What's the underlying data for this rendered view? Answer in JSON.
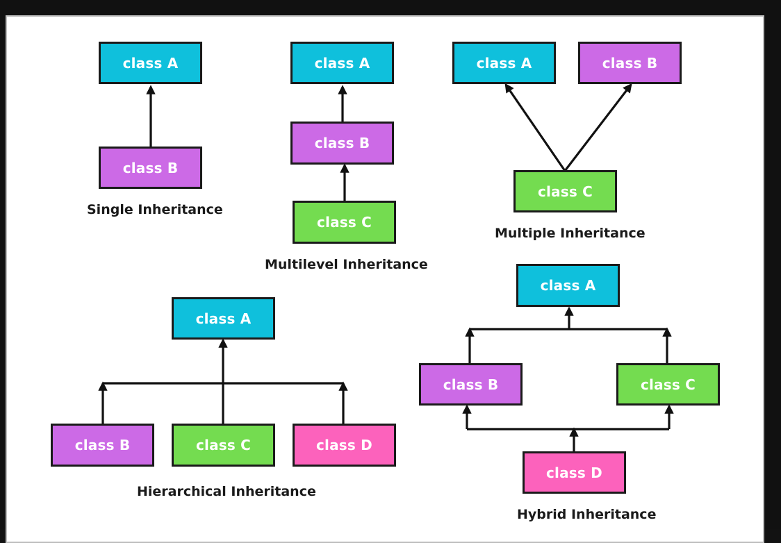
{
  "colors": {
    "cyan": "#0fc0dc",
    "purple": "#cc6ae6",
    "green": "#74dc50",
    "pink": "#fc62bc",
    "line": "#111111"
  },
  "single": {
    "class_a": "class A",
    "class_b": "class B",
    "caption": "Single Inheritance"
  },
  "multilevel": {
    "class_a": "class A",
    "class_b": "class B",
    "class_c": "class C",
    "caption": "Multilevel Inheritance"
  },
  "multiple": {
    "class_a": "class A",
    "class_b": "class B",
    "class_c": "class C",
    "caption": "Multiple Inheritance"
  },
  "hierarchical": {
    "class_a": "class A",
    "class_b": "class B",
    "class_c": "class C",
    "class_d": "class D",
    "caption": "Hierarchical Inheritance"
  },
  "hybrid": {
    "class_a": "class A",
    "class_b": "class B",
    "class_c": "class C",
    "class_d": "class D",
    "caption": "Hybrid Inheritance"
  }
}
